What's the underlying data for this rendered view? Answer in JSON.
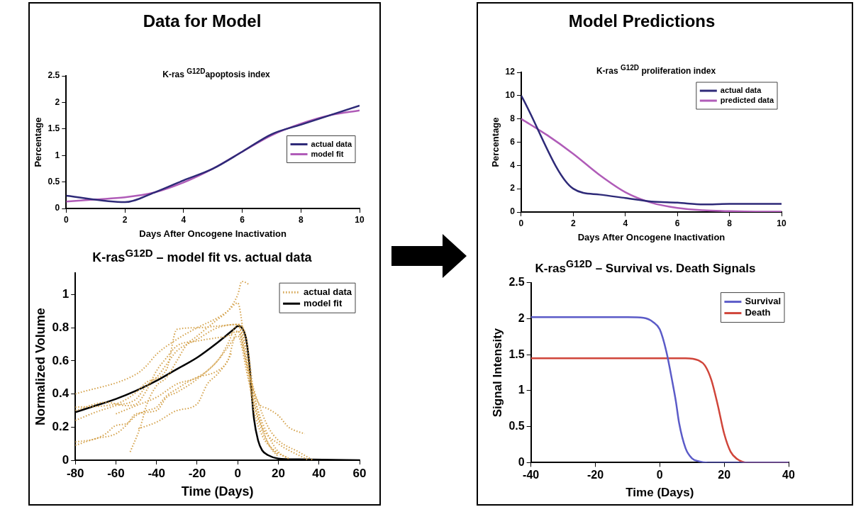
{
  "chart_data": [
    {
      "type": "line",
      "title": "Data for Model",
      "subtitle": "K-ras $^{G12D}$apoptosis index",
      "xlabel": "Days After Oncogene Inactivation",
      "ylabel": "Percentage",
      "xlim": [
        0,
        10
      ],
      "xticks": [
        0,
        2,
        4,
        6,
        8,
        10
      ],
      "ylim": [
        0,
        2.5
      ],
      "yticks": [
        0,
        0.5,
        1,
        1.5,
        2,
        2.5
      ],
      "grid": false,
      "legend": "right",
      "marker": "none",
      "line_style": "solid",
      "series": [
        {
          "name": "actual data",
          "color": "#2e2a78",
          "x": [
            0,
            2,
            3,
            4,
            5,
            6,
            7,
            8,
            10
          ],
          "values": [
            0.24,
            0.12,
            0.3,
            0.53,
            0.75,
            1.07,
            1.4,
            1.58,
            1.94
          ]
        },
        {
          "name": "model fit",
          "color": "#b05cb8",
          "x": [
            0,
            1,
            2,
            3,
            4,
            5,
            6,
            7,
            8,
            9,
            10
          ],
          "values": [
            0.13,
            0.17,
            0.21,
            0.3,
            0.49,
            0.75,
            1.07,
            1.38,
            1.6,
            1.76,
            1.85
          ]
        }
      ]
    },
    {
      "type": "line",
      "title": "K-ras$^{G12D}$ – model fit vs. actual data",
      "xlabel": "Time (Days)",
      "ylabel": "Normalized Volume",
      "xlim": [
        -80,
        60
      ],
      "xticks": [
        -80,
        -60,
        -40,
        -20,
        0,
        20,
        40,
        60
      ],
      "ylim": [
        0,
        1.13
      ],
      "yticks": [
        0,
        0.2,
        0.4,
        0.6,
        0.8,
        1
      ],
      "grid": false,
      "legend": "top right",
      "marker": "none",
      "line_style": "solid",
      "series": [
        {
          "name": "actual data",
          "color": "#d4a24c",
          "line_style": "dotted",
          "x": [
            -80,
            -50,
            -45,
            -40,
            -30,
            -20,
            -10,
            -5,
            0,
            3,
            6,
            10,
            15,
            20,
            25,
            28,
            33
          ],
          "values": [
            0.4,
            0.52,
            0.57,
            0.64,
            0.73,
            0.8,
            0.86,
            0.9,
            0.95,
            0.75,
            0.5,
            0.35,
            0.31,
            0.27,
            0.2,
            0.18,
            0.16
          ]
        },
        {
          "color": "#d4a24c",
          "line_style": "dotted",
          "x": [
            -80,
            -65,
            -55,
            -50,
            -45,
            -40,
            -35,
            -30,
            -20,
            -10,
            -5,
            0,
            5,
            10,
            15,
            20,
            25
          ],
          "values": [
            0.3,
            0.35,
            0.33,
            0.34,
            0.42,
            0.54,
            0.62,
            0.69,
            0.72,
            0.74,
            0.75,
            0.78,
            0.55,
            0.3,
            0.15,
            0.05,
            0.01
          ]
        },
        {
          "color": "#d4a24c",
          "line_style": "dotted",
          "x": [
            -80,
            -70,
            -60,
            -50,
            -45,
            -40,
            -35,
            -30,
            -20,
            -10,
            0,
            5,
            8,
            12,
            20,
            30,
            35
          ],
          "values": [
            0.24,
            0.29,
            0.33,
            0.37,
            0.45,
            0.5,
            0.58,
            0.66,
            0.73,
            0.8,
            0.82,
            0.6,
            0.35,
            0.2,
            0.1,
            0.03,
            0
          ]
        },
        {
          "color": "#d4a24c",
          "line_style": "dotted",
          "x": [
            -80,
            -70,
            -65,
            -60,
            -55,
            -50,
            -45,
            -40,
            -35,
            -30,
            -25,
            -20,
            -10,
            -5,
            0,
            4,
            8,
            12,
            18,
            25
          ],
          "values": [
            0.11,
            0.13,
            0.16,
            0.21,
            0.22,
            0.27,
            0.3,
            0.32,
            0.39,
            0.43,
            0.47,
            0.5,
            0.54,
            0.6,
            0.78,
            0.6,
            0.3,
            0.15,
            0.06,
            0.01
          ]
        },
        {
          "color": "#d4a24c",
          "line_style": "dotted",
          "x": [
            -80,
            -70,
            -60,
            -55,
            -50,
            -40,
            -35,
            -30,
            -20,
            -10,
            -5,
            0,
            5,
            10,
            15,
            20
          ],
          "values": [
            0.09,
            0.13,
            0.16,
            0.21,
            0.28,
            0.3,
            0.38,
            0.41,
            0.49,
            0.6,
            0.68,
            0.75,
            0.5,
            0.25,
            0.1,
            0.03
          ]
        },
        {
          "color": "#d4a24c",
          "line_style": "dotted",
          "x": [
            -53,
            -48,
            -45,
            -40,
            -35,
            -30,
            -25,
            -20,
            -15,
            -10,
            -5,
            0,
            2,
            6
          ],
          "values": [
            0.05,
            0.2,
            0.33,
            0.45,
            0.5,
            0.6,
            0.7,
            0.75,
            0.8,
            0.85,
            0.9,
            1,
            1.08,
            1.06
          ]
        },
        {
          "color": "#d4a24c",
          "line_style": "dotted",
          "x": [
            -49,
            -40,
            -30,
            -20,
            -15,
            -10,
            -5,
            -3
          ],
          "values": [
            0.19,
            0.23,
            0.3,
            0.34,
            0.46,
            0.52,
            0.6,
            0.65
          ]
        },
        {
          "color": "#d4a24c",
          "line_style": "dotted",
          "x": [
            -60,
            -50,
            -40,
            -30,
            -20,
            -10,
            -5,
            0,
            5,
            10,
            15,
            20,
            30,
            37
          ],
          "values": [
            0.28,
            0.33,
            0.38,
            0.46,
            0.5,
            0.6,
            0.7,
            0.82,
            0.55,
            0.35,
            0.2,
            0.12,
            0.05,
            0
          ]
        },
        {
          "color": "#d4a24c",
          "line_style": "dotted",
          "x": [
            -80,
            -60,
            -50,
            -45,
            -35,
            -30,
            -20,
            -10,
            0,
            4,
            8,
            12,
            16,
            20
          ],
          "values": [
            0.32,
            0.34,
            0.41,
            0.47,
            0.55,
            0.79,
            0.8,
            0.81,
            0.82,
            0.75,
            0.4,
            0.2,
            0.08,
            0.02
          ]
        },
        {
          "name": "model fit",
          "color": "#000000",
          "x": [
            -80,
            -70,
            -60,
            -50,
            -40,
            -30,
            -20,
            -10,
            -5,
            -2,
            0,
            1,
            2,
            3,
            4,
            5,
            6,
            7,
            8,
            10,
            12,
            15,
            20,
            30,
            60
          ],
          "values": [
            0.29,
            0.33,
            0.37,
            0.42,
            0.48,
            0.55,
            0.62,
            0.71,
            0.76,
            0.79,
            0.81,
            0.81,
            0.8,
            0.78,
            0.74,
            0.66,
            0.54,
            0.38,
            0.25,
            0.12,
            0.06,
            0.03,
            0.01,
            0.005,
            0
          ]
        }
      ]
    },
    {
      "type": "line",
      "title": "Model Predictions",
      "subtitle": "K-ras $^{G12D}$ proliferation index",
      "xlabel": "Days After Oncogene Inactivation",
      "ylabel": "Percentage",
      "xlim": [
        0,
        10
      ],
      "xticks": [
        0,
        2,
        4,
        6,
        8,
        10
      ],
      "ylim": [
        0,
        12
      ],
      "yticks": [
        0,
        2,
        4,
        6,
        8,
        10,
        12
      ],
      "grid": false,
      "legend": "top right",
      "marker": "none",
      "line_style": "solid",
      "series": [
        {
          "name": "actual data",
          "color": "#2e2a78",
          "x": [
            0,
            2,
            3,
            4,
            5,
            6,
            7,
            8,
            10
          ],
          "values": [
            10,
            2,
            1.5,
            1.2,
            0.9,
            0.8,
            0.65,
            0.7,
            0.7
          ]
        },
        {
          "name": "predicted data",
          "color": "#b05cb8",
          "x": [
            0,
            1,
            2,
            3,
            4,
            5,
            6,
            7,
            8,
            9,
            10
          ],
          "values": [
            8,
            6.6,
            5,
            3.2,
            1.7,
            0.8,
            0.35,
            0.15,
            0.07,
            0.03,
            0.03
          ]
        }
      ]
    },
    {
      "type": "line",
      "title": "K-ras$^{G12D}$ – Survival vs. Death Signals",
      "xlabel": "Time (Days)",
      "ylabel": "Signal Intensity",
      "xlim": [
        -40,
        40
      ],
      "xticks": [
        -40,
        -20,
        0,
        20,
        40
      ],
      "ylim": [
        0,
        2.5
      ],
      "yticks": [
        0,
        0.5,
        1,
        1.5,
        2,
        2.5
      ],
      "grid": false,
      "legend": "top right",
      "marker": "none",
      "line_style": "solid",
      "series": [
        {
          "name": "Survival",
          "color": "#5b5bc8",
          "x": [
            -40,
            -10,
            -5,
            -2,
            0,
            2,
            4,
            5,
            6,
            8,
            10,
            12,
            15,
            40
          ],
          "values": [
            2.02,
            2.02,
            2.01,
            1.95,
            1.85,
            1.55,
            1.1,
            0.85,
            0.55,
            0.2,
            0.06,
            0.02,
            0,
            0
          ]
        },
        {
          "name": "Death",
          "color": "#d0453a",
          "x": [
            -40,
            8,
            12,
            14,
            16,
            18,
            20,
            22,
            24,
            27,
            40
          ],
          "values": [
            1.45,
            1.45,
            1.42,
            1.35,
            1.15,
            0.8,
            0.4,
            0.15,
            0.05,
            0,
            0
          ]
        }
      ]
    }
  ]
}
